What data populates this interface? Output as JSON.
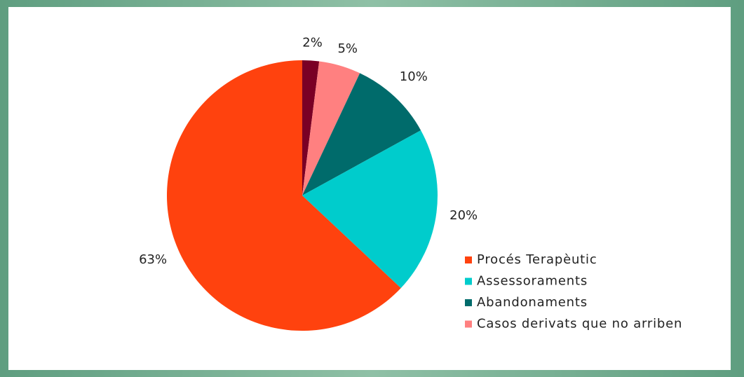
{
  "chart_data": {
    "type": "pie",
    "categories": [
      null,
      "Casos derivats que no arriben",
      "Abandonaments",
      "Assessoraments",
      "Procés Terapèutic"
    ],
    "values": [
      2,
      5,
      10,
      20,
      63
    ],
    "value_labels": [
      "2%",
      "5%",
      "10%",
      "20%",
      "63%"
    ],
    "colors": [
      "#7a0025",
      "#ff8080",
      "#006b6b",
      "#00cccc",
      "#ff420e"
    ],
    "legend": "right"
  }
}
